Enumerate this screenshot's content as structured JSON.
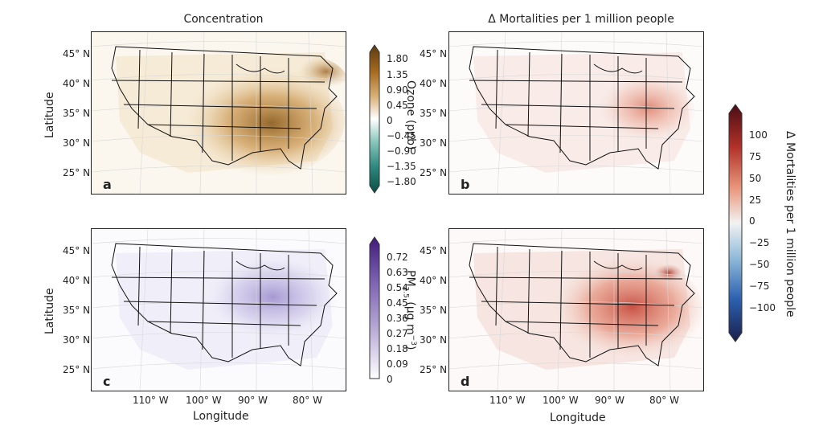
{
  "columns": {
    "left_title": "Concentration",
    "right_title": "Δ Mortalities per 1 million people"
  },
  "panels": [
    {
      "letter": "a",
      "quantity": "ozone_concentration",
      "colormap": "brown-teal",
      "hotspot": "eastern US"
    },
    {
      "letter": "b",
      "quantity": "ozone_mortality",
      "colormap": "red-blue",
      "hotspot": "eastern US"
    },
    {
      "letter": "c",
      "quantity": "pm25_concentration",
      "colormap": "purple",
      "hotspot": "eastern US"
    },
    {
      "letter": "d",
      "quantity": "pm25_mortality",
      "colormap": "red-blue",
      "hotspot": "eastern US"
    }
  ],
  "axes": {
    "latitude_label": "Latitude",
    "longitude_label": "Longitude",
    "lat_ticks": [
      "45° N",
      "40° N",
      "35° N",
      "30° N",
      "25° N"
    ],
    "lon_ticks": [
      "110° W",
      "100° W",
      "90° W",
      "80° W"
    ]
  },
  "colorbars": {
    "ozone": {
      "title": "Ozone (ppb)",
      "ticks": [
        "1.80",
        "1.35",
        "0.90",
        "0.45",
        "0",
        "−0.45",
        "−0.90",
        "−1.35",
        "−1.80"
      ],
      "colors": [
        "#5c3a10",
        "#a66a1f",
        "#d9b27a",
        "#ffffff",
        "#8cc8bd",
        "#2e8a80",
        "#0b4d45"
      ]
    },
    "pm25": {
      "title_main": "PM",
      "title_sub": "2.5",
      "title_unit": " (μg m",
      "title_exp": "−3",
      "title_close": ")",
      "ticks": [
        "0.72",
        "0.63",
        "0.54",
        "0.45",
        "0.36",
        "0.27",
        "0.18",
        "0.09",
        "0"
      ],
      "colors": [
        "#3f1a7a",
        "#7a5fb0",
        "#b8aad6",
        "#ffffff"
      ]
    },
    "mortality": {
      "title": "Δ Mortalities per 1 million people",
      "ticks": [
        "100",
        "75",
        "50",
        "25",
        "0",
        "−25",
        "−50",
        "−75",
        "−100"
      ],
      "colors": [
        "#4a0d14",
        "#b3312a",
        "#e8957a",
        "#f2f2f2",
        "#8fb9d8",
        "#2c61b0",
        "#1a1f4a"
      ]
    }
  }
}
